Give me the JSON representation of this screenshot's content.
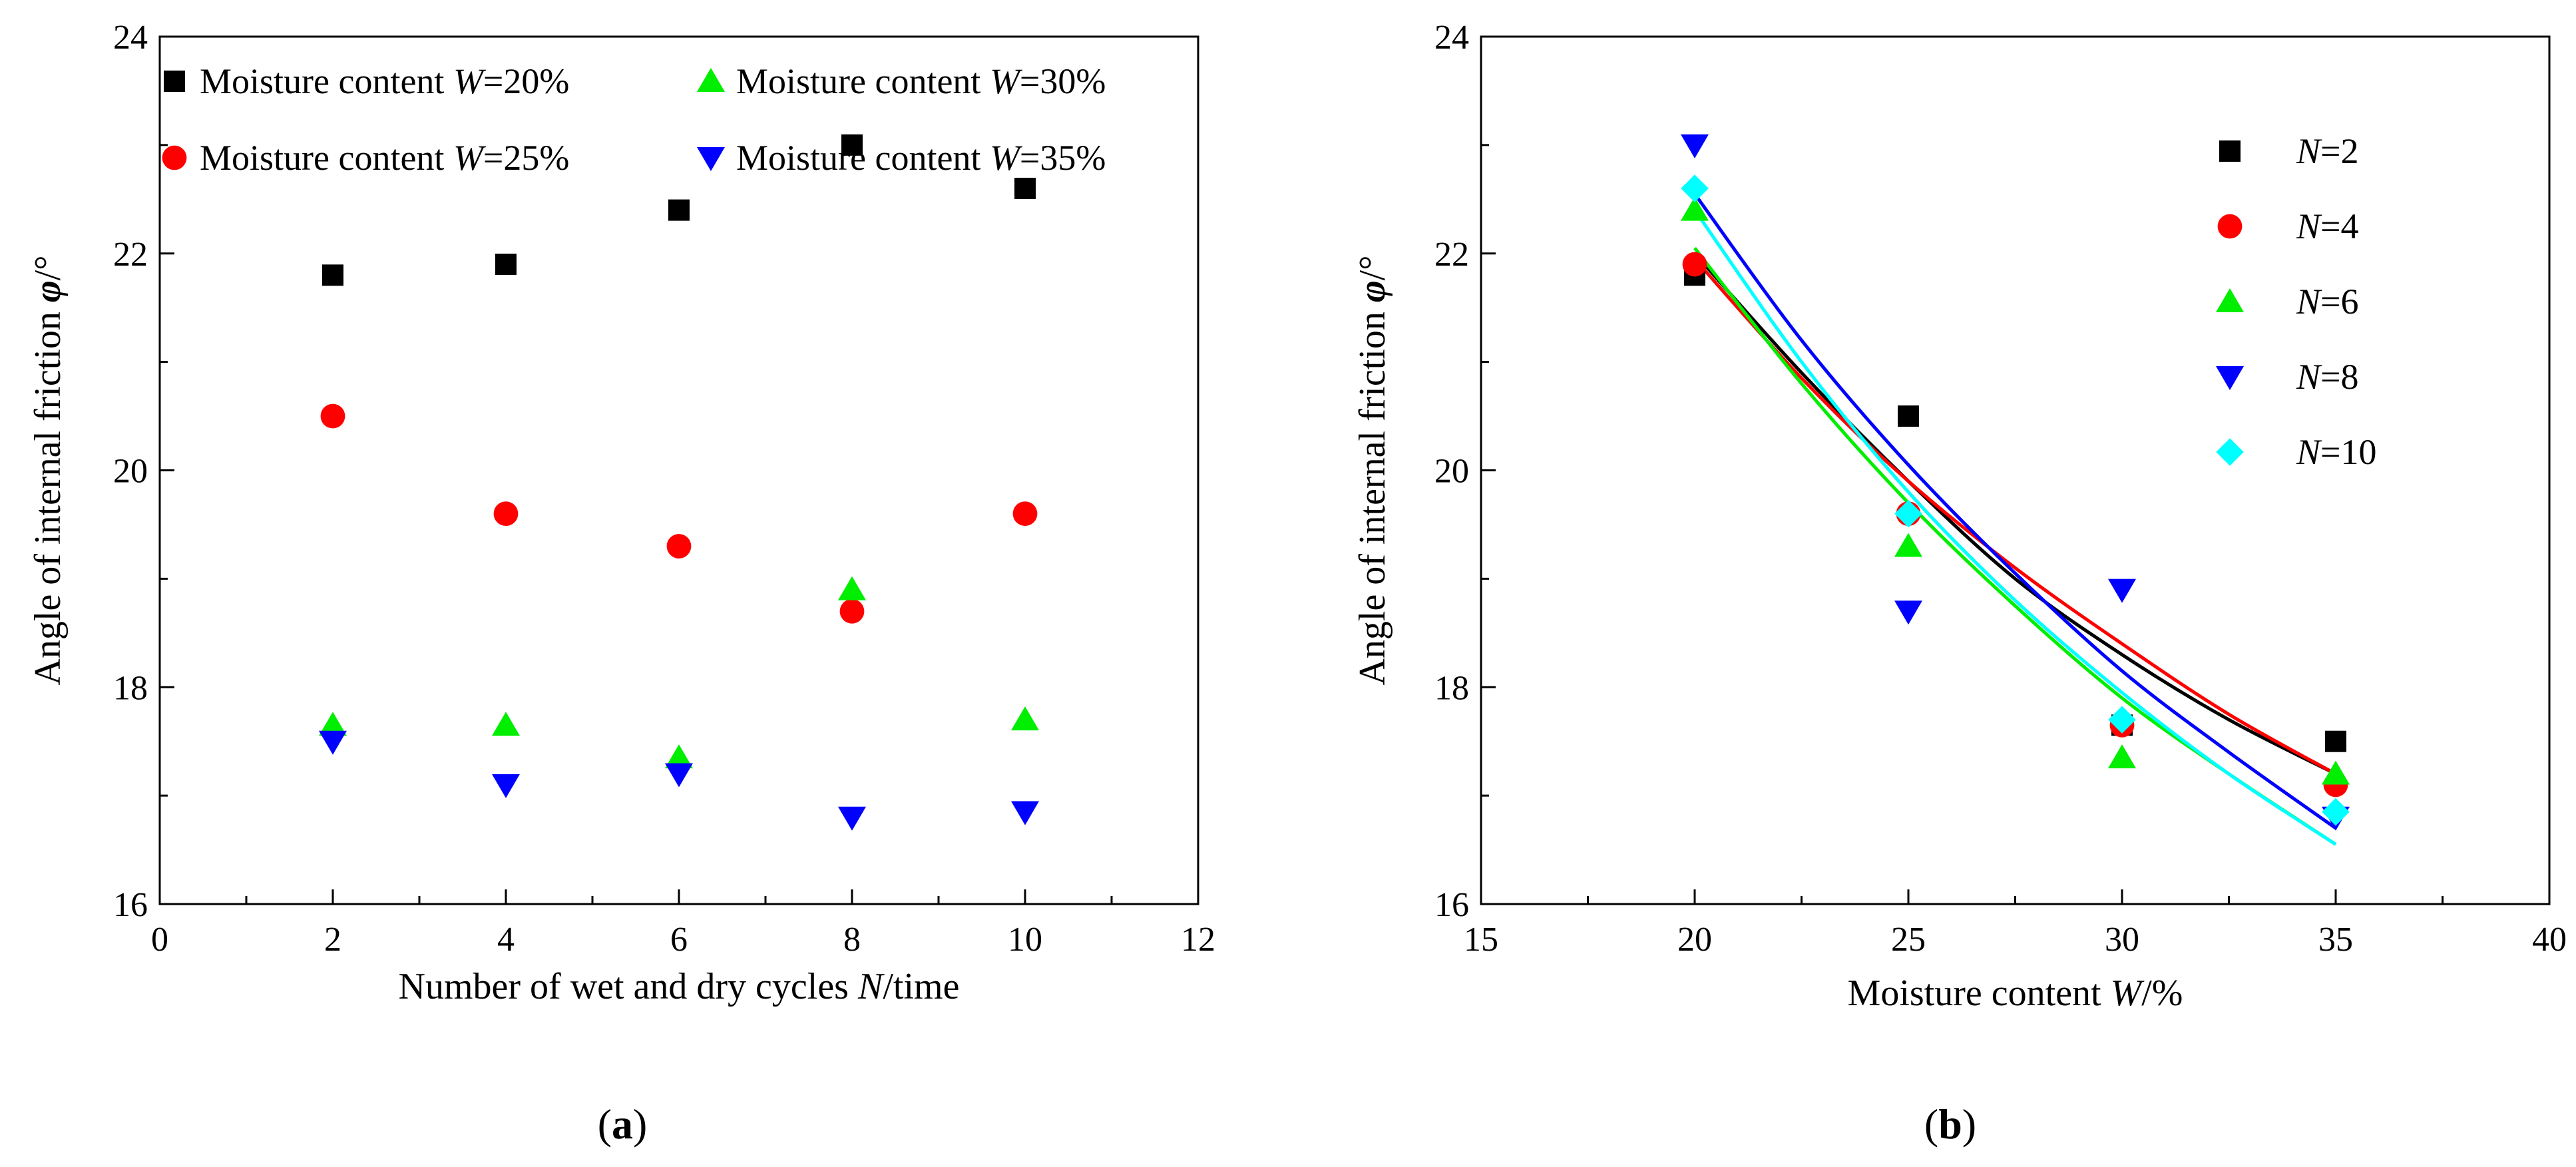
{
  "colors": {
    "black": "#000000",
    "red": "#ff0000",
    "green": "#00ee00",
    "blue": "#0000ff",
    "cyan": "#00ffff"
  },
  "chart_data": [
    {
      "panel": "(a)",
      "panel_letter": "a",
      "type": "scatter",
      "xlabel": {
        "pre": "Number of wet and dry cycles ",
        "var": "N",
        "post": "/time"
      },
      "ylabel": {
        "pre": "Angle of internal friction ",
        "var": "φ",
        "post": "/°"
      },
      "xlim": [
        0,
        12
      ],
      "ylim": [
        16,
        24
      ],
      "xticks": [
        0,
        2,
        4,
        6,
        8,
        10,
        12
      ],
      "yticks": [
        16,
        18,
        20,
        22,
        24
      ],
      "legend_placement": "top-left, two columns",
      "series": [
        {
          "name_pre": "Moisture content ",
          "name_var": "W",
          "name_post": "=20%",
          "marker": "square",
          "color": "#000000",
          "x": [
            2,
            4,
            6,
            8,
            10
          ],
          "y": [
            21.8,
            21.9,
            22.4,
            23.0,
            22.6
          ]
        },
        {
          "name_pre": "Moisture content ",
          "name_var": "W",
          "name_post": "=25%",
          "marker": "circle",
          "color": "#ff0000",
          "x": [
            2,
            4,
            6,
            8,
            10
          ],
          "y": [
            20.5,
            19.6,
            19.3,
            18.7,
            19.6
          ]
        },
        {
          "name_pre": "Moisture content ",
          "name_var": "W",
          "name_post": "=30%",
          "marker": "triangle-up",
          "color": "#00ee00",
          "x": [
            2,
            4,
            6,
            8,
            10
          ],
          "y": [
            17.65,
            17.65,
            17.35,
            18.9,
            17.7
          ]
        },
        {
          "name_pre": "Moisture content ",
          "name_var": "W",
          "name_post": "=35%",
          "marker": "triangle-down",
          "color": "#0000ff",
          "x": [
            2,
            4,
            6,
            8,
            10
          ],
          "y": [
            17.5,
            17.1,
            17.2,
            16.8,
            16.85
          ]
        }
      ]
    },
    {
      "panel": "(b)",
      "panel_letter": "b",
      "type": "scatter",
      "xlabel": {
        "pre": "Moisture content ",
        "var": "W",
        "post": "/%"
      },
      "ylabel": {
        "pre": "Angle of internal friction ",
        "var": "φ",
        "post": "/°"
      },
      "xlim": [
        15,
        40
      ],
      "ylim": [
        16,
        24
      ],
      "xticks": [
        15,
        20,
        25,
        30,
        35,
        40
      ],
      "yticks": [
        16,
        18,
        20,
        22,
        24
      ],
      "legend_placement": "top-right",
      "series": [
        {
          "name_var": "N",
          "name_post": "=2",
          "marker": "square",
          "color": "#000000",
          "x": [
            20,
            25,
            30,
            35
          ],
          "y": [
            21.8,
            20.5,
            17.65,
            17.5
          ],
          "fit": {
            "x": [
              20,
              22.5,
              25,
              27.5,
              30,
              32.5,
              35
            ],
            "y": [
              22.0,
              20.9,
              19.9,
              19.0,
              18.3,
              17.7,
              17.2
            ]
          }
        },
        {
          "name_var": "N",
          "name_post": "=4",
          "marker": "circle",
          "color": "#ff0000",
          "x": [
            20,
            25,
            30,
            35
          ],
          "y": [
            21.9,
            19.6,
            17.65,
            17.1
          ],
          "fit": {
            "x": [
              20,
              22.5,
              25,
              27.5,
              30,
              32.5,
              35
            ],
            "y": [
              21.95,
              20.85,
              19.9,
              19.1,
              18.4,
              17.75,
              17.2
            ]
          }
        },
        {
          "name_var": "N",
          "name_post": "=6",
          "marker": "triangle-up",
          "color": "#00ee00",
          "x": [
            20,
            25,
            30,
            35
          ],
          "y": [
            22.4,
            19.3,
            17.35,
            17.2
          ],
          "fit": {
            "x": [
              20,
              22.5,
              25,
              27.5,
              30,
              32.5,
              35
            ],
            "y": [
              22.05,
              20.8,
              19.7,
              18.75,
              17.9,
              17.2,
              16.55
            ]
          }
        },
        {
          "name_var": "N",
          "name_post": "=8",
          "marker": "triangle-down",
          "color": "#0000ff",
          "x": [
            20,
            25,
            30,
            35
          ],
          "y": [
            23.0,
            18.7,
            18.9,
            16.8
          ],
          "fit": {
            "x": [
              20,
              22.5,
              25,
              27.5,
              30,
              32.5,
              35
            ],
            "y": [
              22.55,
              21.2,
              20.05,
              19.05,
              18.15,
              17.4,
              16.7
            ]
          }
        },
        {
          "name_var": "N",
          "name_post": "=10",
          "marker": "diamond",
          "color": "#00ffff",
          "x": [
            20,
            25,
            30,
            35
          ],
          "y": [
            22.6,
            19.6,
            17.7,
            16.85
          ],
          "fit": {
            "x": [
              20,
              22.5,
              25,
              27.5,
              30,
              32.5,
              35
            ],
            "y": [
              22.4,
              21.0,
              19.8,
              18.8,
              17.95,
              17.2,
              16.55
            ]
          }
        }
      ]
    }
  ]
}
